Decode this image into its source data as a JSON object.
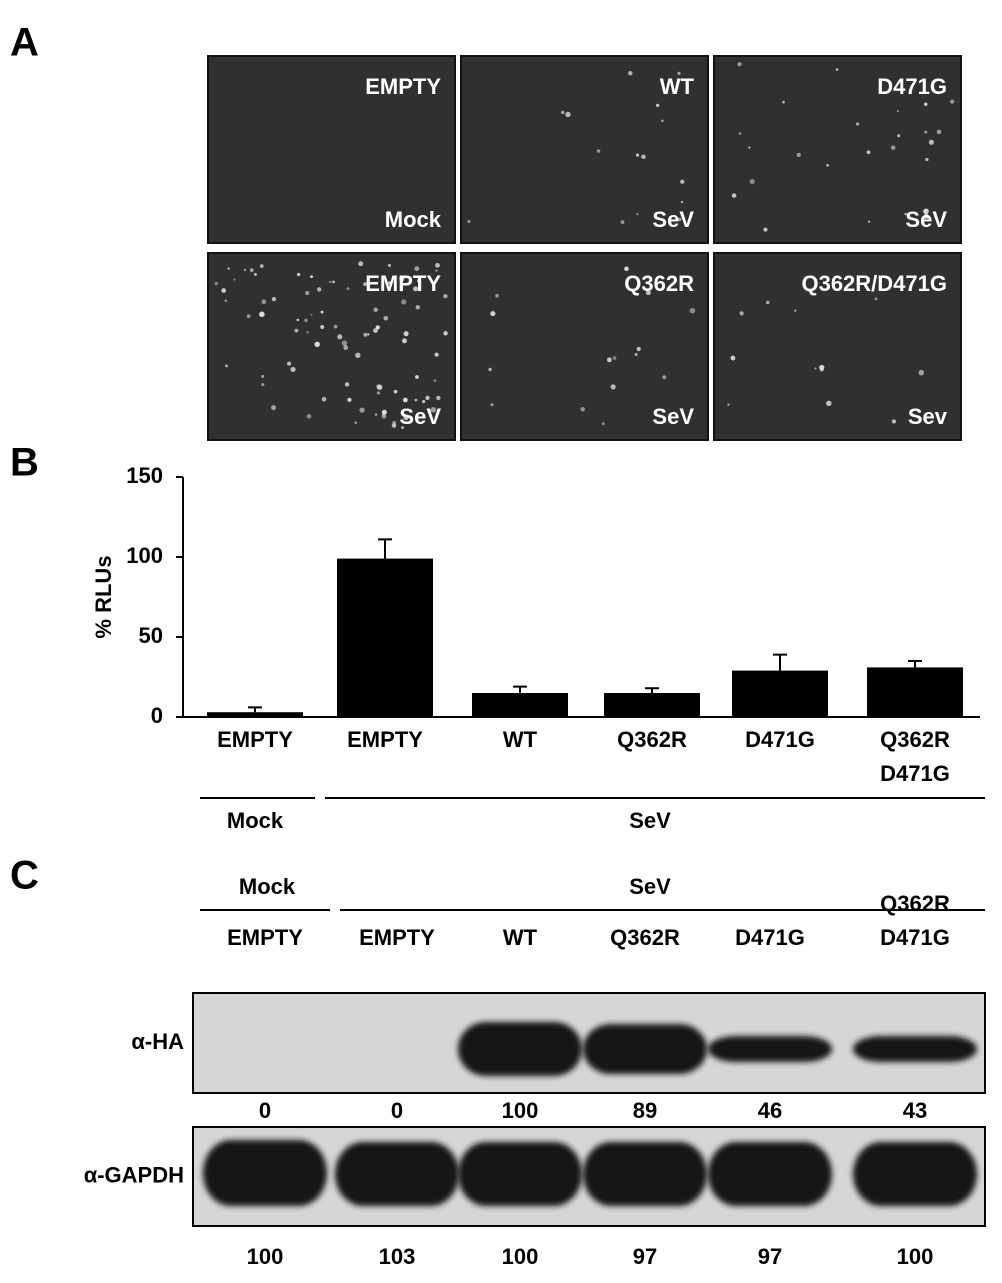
{
  "panel_labels": [
    "A",
    "B",
    "C"
  ],
  "microscopy": [
    {
      "condition": "EMPTY",
      "treatment": "Mock"
    },
    {
      "condition": "WT",
      "treatment": "SeV"
    },
    {
      "condition": "D471G",
      "treatment": "SeV"
    },
    {
      "condition": "EMPTY",
      "treatment": "SeV"
    },
    {
      "condition": "Q362R",
      "treatment": "SeV"
    },
    {
      "condition": "Q362R/D471G",
      "treatment": "Sev"
    }
  ],
  "chart_data": {
    "type": "bar",
    "ylabel": "% RLUs",
    "categories": [
      "EMPTY",
      "EMPTY",
      "WT",
      "Q362R",
      "D471G",
      "Q362R\nD471G"
    ],
    "values": [
      3,
      99,
      15,
      15,
      29,
      31
    ],
    "errors": [
      3,
      12,
      4,
      3,
      10,
      4
    ],
    "color": "#000000",
    "ylim": [
      0,
      150
    ],
    "yticks": [
      0,
      50,
      100,
      150
    ],
    "groups": [
      "Mock",
      "SeV"
    ]
  },
  "blot": {
    "conditions": [
      "Mock",
      "SeV"
    ],
    "lanes": [
      "EMPTY",
      "EMPTY",
      "WT",
      "Q362R",
      "D471G",
      "Q362R\nD471G"
    ],
    "rows": [
      {
        "antibody": "α-HA",
        "quantification": [
          0,
          0,
          100,
          89,
          46,
          43
        ]
      },
      {
        "antibody": "α-GAPDH",
        "quantification": [
          100,
          103,
          100,
          97,
          97,
          100
        ]
      }
    ]
  }
}
